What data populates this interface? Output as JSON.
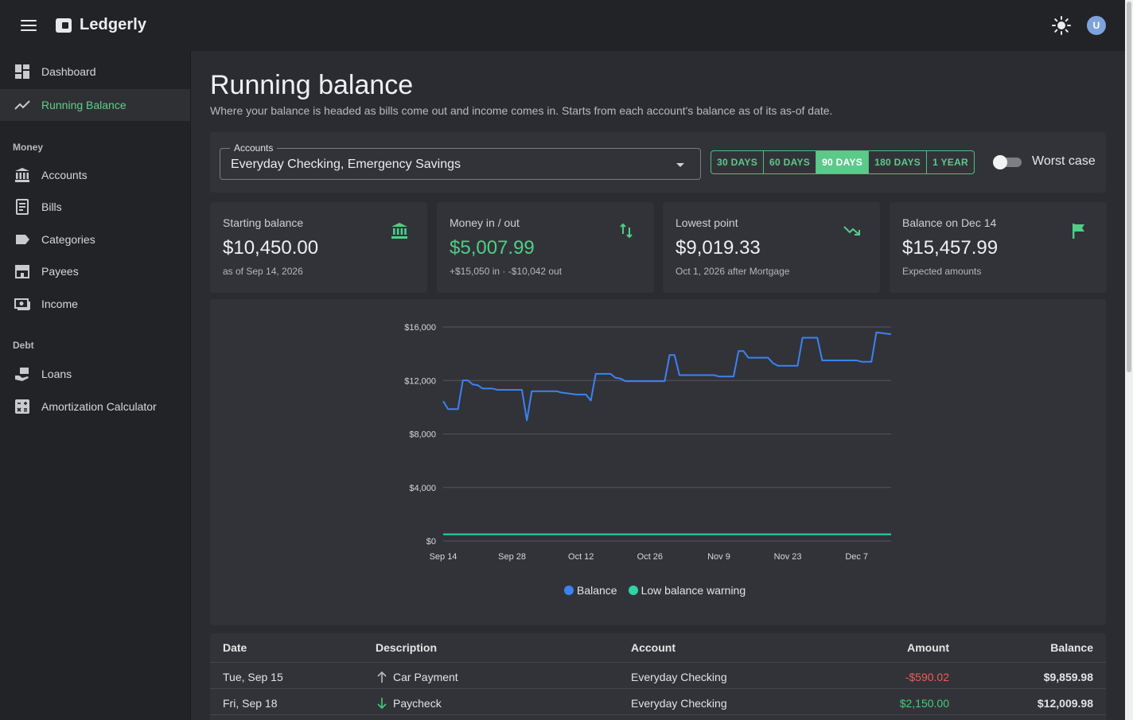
{
  "app": {
    "name": "Ledgerly",
    "avatar_initial": "U"
  },
  "sidebar": {
    "items": [
      {
        "label": "Dashboard",
        "icon": "dashboard-icon"
      },
      {
        "label": "Running Balance",
        "icon": "trending-line-icon",
        "active": true
      }
    ],
    "sections": [
      {
        "header": "Money",
        "items": [
          {
            "label": "Accounts",
            "icon": "bank-icon"
          },
          {
            "label": "Bills",
            "icon": "receipt-icon"
          },
          {
            "label": "Categories",
            "icon": "label-icon"
          },
          {
            "label": "Payees",
            "icon": "store-icon"
          },
          {
            "label": "Income",
            "icon": "cash-icon"
          }
        ]
      },
      {
        "header": "Debt",
        "items": [
          {
            "label": "Loans",
            "icon": "loan-hand-icon"
          },
          {
            "label": "Amortization Calculator",
            "icon": "calculator-icon"
          }
        ]
      }
    ]
  },
  "page": {
    "title": "Running balance",
    "subtitle": "Where your balance is headed as bills come out and income comes in. Starts from each account's balance as of its as-of date."
  },
  "filters": {
    "accounts_label": "Accounts",
    "accounts_value": "Everyday Checking, Emergency Savings",
    "ranges": [
      "30 DAYS",
      "60 DAYS",
      "90 DAYS",
      "180 DAYS",
      "1 YEAR"
    ],
    "active_range": "90 DAYS",
    "worst_case_label": "Worst case",
    "worst_case_on": false
  },
  "stats": [
    {
      "label": "Starting balance",
      "value": "$10,450.00",
      "note": "as of Sep 14, 2026",
      "icon": "bank-icon"
    },
    {
      "label": "Money in / out",
      "value": "$5,007.99",
      "note": "+$15,050 in · -$10,042 out",
      "icon": "swap-vertical-icon"
    },
    {
      "label": "Lowest point",
      "value": "$9,019.33",
      "note": "Oct 1, 2026 after Mortgage",
      "icon": "trending-down-icon"
    },
    {
      "label": "Balance on Dec 14",
      "value": "$15,457.99",
      "note": "Expected amounts",
      "icon": "flag-icon"
    }
  ],
  "chart_data": {
    "type": "line",
    "y_ticks": [
      "$16,000",
      "$12,000",
      "$8,000",
      "$4,000",
      "$0"
    ],
    "x_ticks": [
      "Sep 14",
      "Sep 28",
      "Oct 12",
      "Oct 26",
      "Nov 9",
      "Nov 23",
      "Dec 7"
    ],
    "ylim": [
      0,
      16000
    ],
    "xlim_days": [
      0,
      91
    ],
    "grid": true,
    "legend_position": "bottom",
    "series": [
      {
        "name": "Balance",
        "color": "#3b82f6",
        "points": [
          [
            0,
            10450
          ],
          [
            1,
            9860
          ],
          [
            3,
            9860
          ],
          [
            4,
            12010
          ],
          [
            5,
            12010
          ],
          [
            6,
            11700
          ],
          [
            7,
            11650
          ],
          [
            8,
            11400
          ],
          [
            10,
            11400
          ],
          [
            11,
            11300
          ],
          [
            16,
            11300
          ],
          [
            17,
            9019
          ],
          [
            18,
            11200
          ],
          [
            23,
            11200
          ],
          [
            24,
            11100
          ],
          [
            27,
            10950
          ],
          [
            29,
            10950
          ],
          [
            30,
            10500
          ],
          [
            31,
            12500
          ],
          [
            34,
            12500
          ],
          [
            35,
            12200
          ],
          [
            36,
            12150
          ],
          [
            37,
            11950
          ],
          [
            45,
            11950
          ],
          [
            46,
            13900
          ],
          [
            47,
            13900
          ],
          [
            48,
            12400
          ],
          [
            55,
            12400
          ],
          [
            56,
            12300
          ],
          [
            59,
            12300
          ],
          [
            60,
            14200
          ],
          [
            61,
            14200
          ],
          [
            62,
            13700
          ],
          [
            66,
            13700
          ],
          [
            67,
            13300
          ],
          [
            68,
            13100
          ],
          [
            72,
            13100
          ],
          [
            73,
            15200
          ],
          [
            76,
            15200
          ],
          [
            77,
            13500
          ],
          [
            84,
            13500
          ],
          [
            85,
            13400
          ],
          [
            87,
            13400
          ],
          [
            88,
            15600
          ],
          [
            91,
            15458
          ]
        ]
      },
      {
        "name": "Low balance warning",
        "color": "#2dd4a8",
        "points": [
          [
            0,
            500
          ],
          [
            91,
            500
          ]
        ]
      }
    ]
  },
  "table": {
    "headers": [
      "Date",
      "Description",
      "Account",
      "Amount",
      "Balance"
    ],
    "rows": [
      {
        "date": "Tue, Sep 15",
        "description": "Car Payment",
        "direction": "out",
        "account": "Everyday Checking",
        "amount": "-$590.02",
        "balance": "$9,859.98"
      },
      {
        "date": "Fri, Sep 18",
        "description": "Paycheck",
        "direction": "in",
        "account": "Everyday Checking",
        "amount": "$2,150.00",
        "balance": "$12,009.98"
      }
    ]
  }
}
